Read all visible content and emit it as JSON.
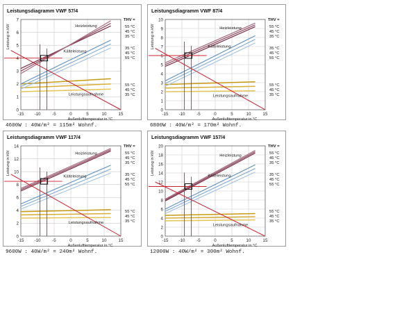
{
  "chart_data": [
    {
      "type": "line",
      "title": "Leistungsdiagramm VWF 57/4",
      "caption": "4600W : 40W/m² = 115m² Wohnf.",
      "ylabel": "Leistung in kW",
      "xlabel": "Außenlufttemperatur in °C",
      "thv_label": "THV =",
      "ylim": [
        0,
        7
      ],
      "yticks": [
        0,
        1,
        2,
        3,
        4,
        5,
        6,
        7
      ],
      "xlim": [
        -15,
        15
      ],
      "xticks": [
        -15,
        -10,
        -5,
        0,
        5,
        10,
        15
      ],
      "annotations": {
        "heiz": "Heizleistung",
        "kaelte": "Kälteleistung",
        "aufnahme": "Leistungsaufnahme"
      },
      "heating_series": [
        {
          "name": "55 °C",
          "x": [
            -15,
            12
          ],
          "y": [
            3.2,
            6.5
          ]
        },
        {
          "name": "45 °C",
          "x": [
            -15,
            12
          ],
          "y": [
            3.0,
            6.7
          ]
        },
        {
          "name": "35 °C",
          "x": [
            -15,
            12
          ],
          "y": [
            2.8,
            6.9
          ]
        }
      ],
      "cooling_series": [
        {
          "name": "35 °C",
          "x": [
            -15,
            12
          ],
          "y": [
            2.0,
            5.4
          ]
        },
        {
          "name": "45 °C",
          "x": [
            -15,
            12
          ],
          "y": [
            1.8,
            5.1
          ]
        },
        {
          "name": "55 °C",
          "x": [
            -15,
            12
          ],
          "y": [
            1.6,
            4.8
          ]
        }
      ],
      "power_series": [
        {
          "name": "55 °C",
          "x": [
            -15,
            12
          ],
          "y": [
            2.0,
            2.4
          ]
        },
        {
          "name": "45 °C",
          "x": [
            -15,
            12
          ],
          "y": [
            1.7,
            2.0
          ]
        },
        {
          "name": "35 °C",
          "x": [
            -15,
            12
          ],
          "y": [
            1.4,
            1.6
          ]
        }
      ],
      "heating_names": [
        "55 °C",
        "45 °C",
        "35 °C"
      ],
      "cooling_names": [
        "35 °C",
        "45 °C",
        "55 °C"
      ],
      "power_names": [
        "55 °C",
        "45 °C",
        "35 °C"
      ],
      "demand_line": {
        "x": [
          -18,
          15
        ],
        "y": [
          4.6,
          0
        ]
      },
      "operating_point": {
        "x": -8,
        "y": 4.0
      }
    },
    {
      "type": "line",
      "title": "Leistungsdiagramm VWF 87/4",
      "caption": "6800W : 40W/m² = 170m² Wohnf.",
      "ylabel": "Leistung in kW",
      "xlabel": "Außenlufttemperatur in °C",
      "thv_label": "THV =",
      "ylim": [
        0,
        10
      ],
      "yticks": [
        0,
        1,
        2,
        3,
        4,
        5,
        6,
        7,
        8,
        9,
        10
      ],
      "xlim": [
        -15,
        15
      ],
      "xticks": [
        -15,
        -10,
        -5,
        0,
        5,
        10,
        15
      ],
      "annotations": {
        "heiz": "Heizleistung",
        "kaelte": "Kälteleistung",
        "aufnahme": "Leistungsaufnahme"
      },
      "heating_series": [
        {
          "name": "55 °C",
          "x": [
            -15,
            12
          ],
          "y": [
            4.8,
            9.2
          ]
        },
        {
          "name": "45 °C",
          "x": [
            -15,
            12
          ],
          "y": [
            5.0,
            9.4
          ]
        },
        {
          "name": "35 °C",
          "x": [
            -15,
            12
          ],
          "y": [
            5.2,
            9.6
          ]
        }
      ],
      "cooling_series": [
        {
          "name": "35 °C",
          "x": [
            -15,
            12
          ],
          "y": [
            3.2,
            8.2
          ]
        },
        {
          "name": "45 °C",
          "x": [
            -15,
            12
          ],
          "y": [
            2.9,
            7.8
          ]
        },
        {
          "name": "55 °C",
          "x": [
            -15,
            12
          ],
          "y": [
            2.6,
            7.4
          ]
        }
      ],
      "power_series": [
        {
          "name": "55 °C",
          "x": [
            -15,
            12
          ],
          "y": [
            2.8,
            3.1
          ]
        },
        {
          "name": "45 °C",
          "x": [
            -15,
            12
          ],
          "y": [
            2.4,
            2.6
          ]
        },
        {
          "name": "35 °C",
          "x": [
            -15,
            12
          ],
          "y": [
            2.0,
            2.1
          ]
        }
      ],
      "heating_names": [
        "55 °C",
        "45 °C",
        "35 °C"
      ],
      "cooling_names": [
        "35 °C",
        "45 °C",
        "55 °C"
      ],
      "power_names": [
        "55 °C",
        "45 °C",
        "35 °C"
      ],
      "demand_line": {
        "x": [
          -18,
          15
        ],
        "y": [
          6.8,
          0
        ]
      },
      "operating_point": {
        "x": -8,
        "y": 6.0
      }
    },
    {
      "type": "line",
      "title": "Leistungsdiagramm VWF 117/4",
      "caption": "9600W : 40W/m² = 240m² Wohnf.",
      "ylabel": "Leistung in kW",
      "xlabel": "Außenlufttemperatur in °C",
      "thv_label": "THV =",
      "ylim": [
        0,
        14
      ],
      "yticks": [
        0,
        2,
        4,
        6,
        8,
        10,
        12,
        14
      ],
      "xlim": [
        -15,
        15
      ],
      "xticks": [
        -15,
        -10,
        -5,
        0,
        5,
        10,
        15
      ],
      "annotations": {
        "heiz": "Heizleistung",
        "kaelte": "Kälteleistung",
        "aufnahme": "Leistungsaufnahme"
      },
      "heating_series": [
        {
          "name": "55 °C",
          "x": [
            -15,
            12
          ],
          "y": [
            7.0,
            13.2
          ]
        },
        {
          "name": "45 °C",
          "x": [
            -15,
            12
          ],
          "y": [
            7.2,
            13.4
          ]
        },
        {
          "name": "35 °C",
          "x": [
            -15,
            12
          ],
          "y": [
            7.4,
            13.6
          ]
        }
      ],
      "cooling_series": [
        {
          "name": "35 °C",
          "x": [
            -15,
            12
          ],
          "y": [
            5.0,
            11.0
          ]
        },
        {
          "name": "45 °C",
          "x": [
            -15,
            12
          ],
          "y": [
            4.6,
            10.4
          ]
        },
        {
          "name": "55 °C",
          "x": [
            -15,
            12
          ],
          "y": [
            4.2,
            9.8
          ]
        }
      ],
      "power_series": [
        {
          "name": "55 °C",
          "x": [
            -15,
            12
          ],
          "y": [
            3.8,
            4.1
          ]
        },
        {
          "name": "45 °C",
          "x": [
            -15,
            12
          ],
          "y": [
            3.3,
            3.5
          ]
        },
        {
          "name": "35 °C",
          "x": [
            -15,
            12
          ],
          "y": [
            2.8,
            2.9
          ]
        }
      ],
      "heating_names": [
        "55 °C",
        "45 °C",
        "35 °C"
      ],
      "cooling_names": [
        "35 °C",
        "45 °C",
        "55 °C"
      ],
      "power_names": [
        "55 °C",
        "45 °C",
        "35 °C"
      ],
      "demand_line": {
        "x": [
          -18,
          15
        ],
        "y": [
          9.6,
          0
        ]
      },
      "operating_point": {
        "x": -8,
        "y": 8.5
      }
    },
    {
      "type": "line",
      "title": "Leistungsdiagramm VWF 157/4",
      "caption": "12000W : 40W/m² = 300m² Wohnf.",
      "ylabel": "Leistung in kW",
      "xlabel": "Außenlufttemperatur in °C",
      "thv_label": "THV =",
      "ylim": [
        0,
        20
      ],
      "yticks": [
        0,
        2,
        4,
        6,
        8,
        10,
        12,
        14,
        16,
        18,
        20
      ],
      "xlim": [
        -15,
        15
      ],
      "xticks": [
        -15,
        -10,
        -5,
        0,
        5,
        10,
        15
      ],
      "annotations": {
        "heiz": "Heizleistung",
        "kaelte": "Kälteleistung",
        "aufnahme": "Leistungsaufnahme"
      },
      "heating_series": [
        {
          "name": "55 °C",
          "x": [
            -15,
            12
          ],
          "y": [
            7.8,
            18.4
          ]
        },
        {
          "name": "45 °C",
          "x": [
            -15,
            12
          ],
          "y": [
            8.0,
            18.7
          ]
        },
        {
          "name": "35 °C",
          "x": [
            -15,
            12
          ],
          "y": [
            8.2,
            19.0
          ]
        }
      ],
      "cooling_series": [
        {
          "name": "35 °C",
          "x": [
            -15,
            12
          ],
          "y": [
            6.0,
            15.8
          ]
        },
        {
          "name": "45 °C",
          "x": [
            -15,
            12
          ],
          "y": [
            5.5,
            15.0
          ]
        },
        {
          "name": "55 °C",
          "x": [
            -15,
            12
          ],
          "y": [
            5.0,
            14.2
          ]
        }
      ],
      "power_series": [
        {
          "name": "55 °C",
          "x": [
            -15,
            12
          ],
          "y": [
            4.6,
            5.0
          ]
        },
        {
          "name": "45 °C",
          "x": [
            -15,
            12
          ],
          "y": [
            4.0,
            4.3
          ]
        },
        {
          "name": "35 °C",
          "x": [
            -15,
            12
          ],
          "y": [
            3.4,
            3.6
          ]
        }
      ],
      "heating_names": [
        "55 °C",
        "45 °C",
        "35 °C"
      ],
      "cooling_names": [
        "35 °C",
        "45 °C",
        "55 °C"
      ],
      "power_names": [
        "55 °C",
        "45 °C",
        "35 °C"
      ],
      "demand_line": {
        "x": [
          -18,
          15
        ],
        "y": [
          12.0,
          0
        ]
      },
      "operating_point": {
        "x": -8,
        "y": 11.0
      }
    }
  ]
}
